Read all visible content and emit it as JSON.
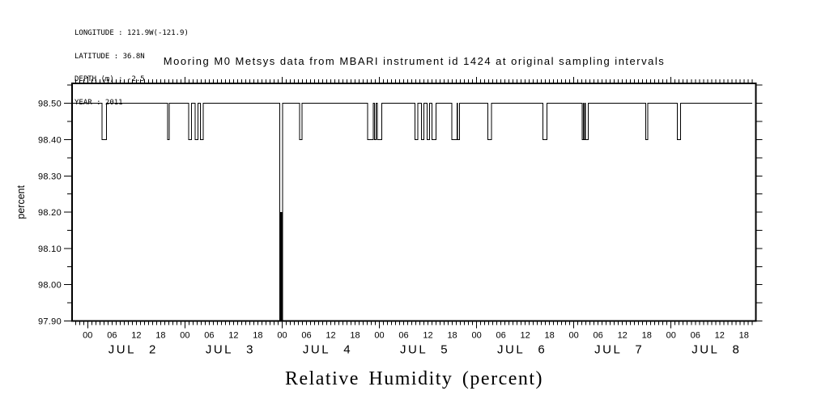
{
  "header": {
    "info_lines": [
      "LONGITUDE : 121.9W(-121.9)",
      "LATITUDE : 36.8N",
      "DEPTH (m) : -2.5",
      "YEAR : 2011"
    ]
  },
  "chart_data": {
    "type": "line",
    "title": "Mooring M0 Metsys data from MBARI instrument id 1424 at original sampling intervals",
    "xlabel": "Relative Humidity (percent)",
    "ylabel": "percent",
    "grid": false,
    "legend": "none",
    "line_color": "#000000",
    "background_color": "#ffffff",
    "ylim": [
      97.9,
      98.555
    ],
    "y_ticks": [
      {
        "value": 97.9,
        "label": "97.90"
      },
      {
        "value": 98.0,
        "label": "98.00"
      },
      {
        "value": 98.1,
        "label": "98.10"
      },
      {
        "value": 98.2,
        "label": "98.20"
      },
      {
        "value": 98.3,
        "label": "98.30"
      },
      {
        "value": 98.4,
        "label": "98.40"
      },
      {
        "value": 98.5,
        "label": "98.50"
      }
    ],
    "y_minor_step": 0.05,
    "x_units": "hours since JUL 2 00:00 (2011)",
    "xlim_hours": [
      -3.86,
      164.94
    ],
    "x_minor_step_hours": 1,
    "x_major_step_hours": 24,
    "hour_label_offsets": [
      0,
      6,
      12,
      18
    ],
    "hour_label_texts": [
      "00",
      "06",
      "12",
      "18"
    ],
    "days": [
      {
        "label": "JUL 2",
        "start_hour": 0
      },
      {
        "label": "JUL 3",
        "start_hour": 24
      },
      {
        "label": "JUL 4",
        "start_hour": 48
      },
      {
        "label": "JUL 5",
        "start_hour": 72
      },
      {
        "label": "JUL 6",
        "start_hour": 96
      },
      {
        "label": "JUL 7",
        "start_hour": 120
      },
      {
        "label": "JUL 8",
        "start_hour": 144
      }
    ],
    "baseline_value": 98.5,
    "series_name": "relative humidity",
    "dips": [
      {
        "from_hour": 3.56,
        "to_hour": 4.6,
        "value": 98.4
      },
      {
        "from_hour": 19.74,
        "to_hour": 20.08,
        "value": 98.4
      },
      {
        "from_hour": 24.88,
        "to_hour": 25.6,
        "value": 98.4
      },
      {
        "from_hour": 26.48,
        "to_hour": 27.2,
        "value": 98.4
      },
      {
        "from_hour": 27.8,
        "to_hour": 28.48,
        "value": 98.4
      },
      {
        "from_hour": 47.4,
        "to_hour": 48.06,
        "value": 97.9,
        "fill_below": 98.2
      },
      {
        "from_hour": 52.34,
        "to_hour": 52.94,
        "value": 98.4
      },
      {
        "from_hour": 69.14,
        "to_hour": 70.54,
        "value": 98.4
      },
      {
        "from_hour": 70.84,
        "to_hour": 71.24,
        "value": 98.4
      },
      {
        "from_hour": 71.54,
        "to_hour": 72.64,
        "value": 98.4
      },
      {
        "from_hour": 80.78,
        "to_hour": 81.5,
        "value": 98.4
      },
      {
        "from_hour": 82.36,
        "to_hour": 82.98,
        "value": 98.4
      },
      {
        "from_hour": 83.74,
        "to_hour": 84.36,
        "value": 98.4
      },
      {
        "from_hour": 85.0,
        "to_hour": 86.0,
        "value": 98.4
      },
      {
        "from_hour": 89.88,
        "to_hour": 91.18,
        "value": 98.4
      },
      {
        "from_hour": 91.3,
        "to_hour": 91.74,
        "value": 98.4
      },
      {
        "from_hour": 98.8,
        "to_hour": 99.68,
        "value": 98.4
      },
      {
        "from_hour": 112.34,
        "to_hour": 113.34,
        "value": 98.4
      },
      {
        "from_hour": 122.04,
        "to_hour": 122.4,
        "value": 98.4
      },
      {
        "from_hour": 122.5,
        "to_hour": 122.8,
        "value": 98.4
      },
      {
        "from_hour": 122.9,
        "to_hour": 123.6,
        "value": 98.4
      },
      {
        "from_hour": 137.74,
        "to_hour": 138.24,
        "value": 98.4
      },
      {
        "from_hour": 145.54,
        "to_hour": 146.34,
        "value": 98.4
      }
    ]
  }
}
